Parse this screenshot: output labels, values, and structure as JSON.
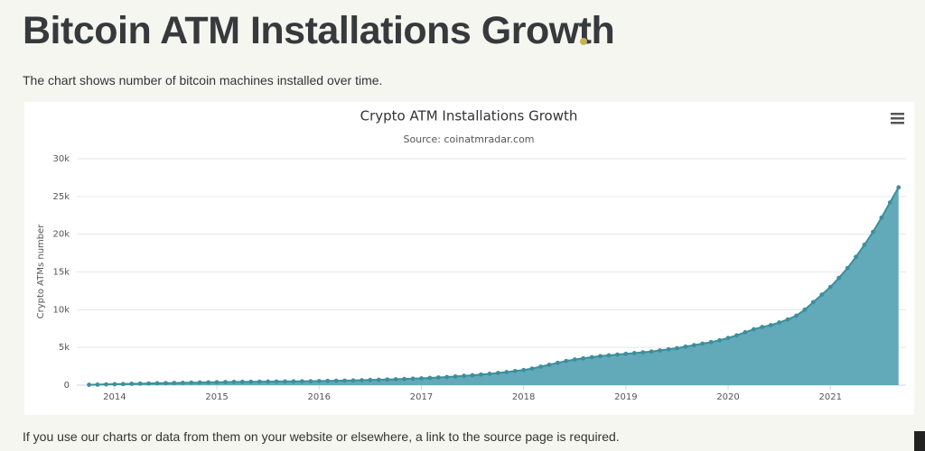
{
  "header": {
    "title": "Bitcoin ATM Installations Growth",
    "description": "The chart shows number of bitcoin machines installed over time."
  },
  "chart_data": {
    "type": "area",
    "title": "Crypto ATM Installations Growth",
    "subtitle": "Source: coinatmradar.com",
    "y_label": "Crypto ATMs number",
    "x": [
      2013.75,
      2013.833,
      2013.917,
      2014,
      2014.083,
      2014.167,
      2014.25,
      2014.333,
      2014.417,
      2014.5,
      2014.583,
      2014.667,
      2014.75,
      2014.833,
      2014.917,
      2015,
      2015.083,
      2015.167,
      2015.25,
      2015.333,
      2015.417,
      2015.5,
      2015.583,
      2015.667,
      2015.75,
      2015.833,
      2015.917,
      2016,
      2016.083,
      2016.167,
      2016.25,
      2016.333,
      2016.417,
      2016.5,
      2016.583,
      2016.667,
      2016.75,
      2016.833,
      2016.917,
      2017,
      2017.083,
      2017.167,
      2017.25,
      2017.333,
      2017.417,
      2017.5,
      2017.583,
      2017.667,
      2017.75,
      2017.833,
      2017.917,
      2018,
      2018.083,
      2018.167,
      2018.25,
      2018.333,
      2018.417,
      2018.5,
      2018.583,
      2018.667,
      2018.75,
      2018.833,
      2018.917,
      2019,
      2019.083,
      2019.167,
      2019.25,
      2019.333,
      2019.417,
      2019.5,
      2019.583,
      2019.667,
      2019.75,
      2019.833,
      2019.917,
      2020,
      2020.083,
      2020.167,
      2020.25,
      2020.333,
      2020.417,
      2020.5,
      2020.583,
      2020.667,
      2020.75,
      2020.833,
      2020.917,
      2021,
      2021.083,
      2021.167,
      2021.25,
      2021.333,
      2021.417,
      2021.5,
      2021.583,
      2021.667
    ],
    "series": [
      {
        "name": "Crypto ATMs",
        "color": "#3d8f9c",
        "fill": "#62a9ba",
        "values": [
          50,
          70,
          100,
          130,
          150,
          180,
          200,
          220,
          250,
          270,
          290,
          310,
          330,
          350,
          370,
          390,
          410,
          430,
          440,
          450,
          460,
          470,
          480,
          490,
          500,
          510,
          520,
          540,
          560,
          580,
          600,
          620,
          650,
          680,
          710,
          740,
          780,
          820,
          860,
          900,
          960,
          1020,
          1080,
          1150,
          1230,
          1310,
          1400,
          1500,
          1610,
          1730,
          1870,
          2000,
          2200,
          2450,
          2700,
          2950,
          3200,
          3400,
          3550,
          3700,
          3850,
          3950,
          4050,
          4150,
          4250,
          4350,
          4450,
          4600,
          4750,
          4900,
          5100,
          5300,
          5500,
          5700,
          5950,
          6250,
          6600,
          7000,
          7400,
          7700,
          7950,
          8300,
          8700,
          9200,
          10000,
          11000,
          12000,
          13000,
          14200,
          15500,
          17000,
          18600,
          20300,
          22200,
          24200,
          26200
        ]
      }
    ],
    "xlim": [
      2013.63,
      2021.74
    ],
    "xticks": [
      2014,
      2015,
      2016,
      2017,
      2018,
      2019,
      2020,
      2021
    ],
    "ylim": [
      0,
      30000
    ],
    "yticks": [
      0,
      {
        "value": 5000,
        "label": "5k"
      },
      {
        "value": 10000,
        "label": "10k"
      },
      {
        "value": 15000,
        "label": "15k"
      },
      {
        "value": 20000,
        "label": "20k"
      },
      {
        "value": 25000,
        "label": "25k"
      },
      {
        "value": 30000,
        "label": "30k"
      }
    ],
    "grid": true
  },
  "footer": {
    "note": "If you use our charts or data from them on your website or elsewhere, a link to the source page is required."
  }
}
